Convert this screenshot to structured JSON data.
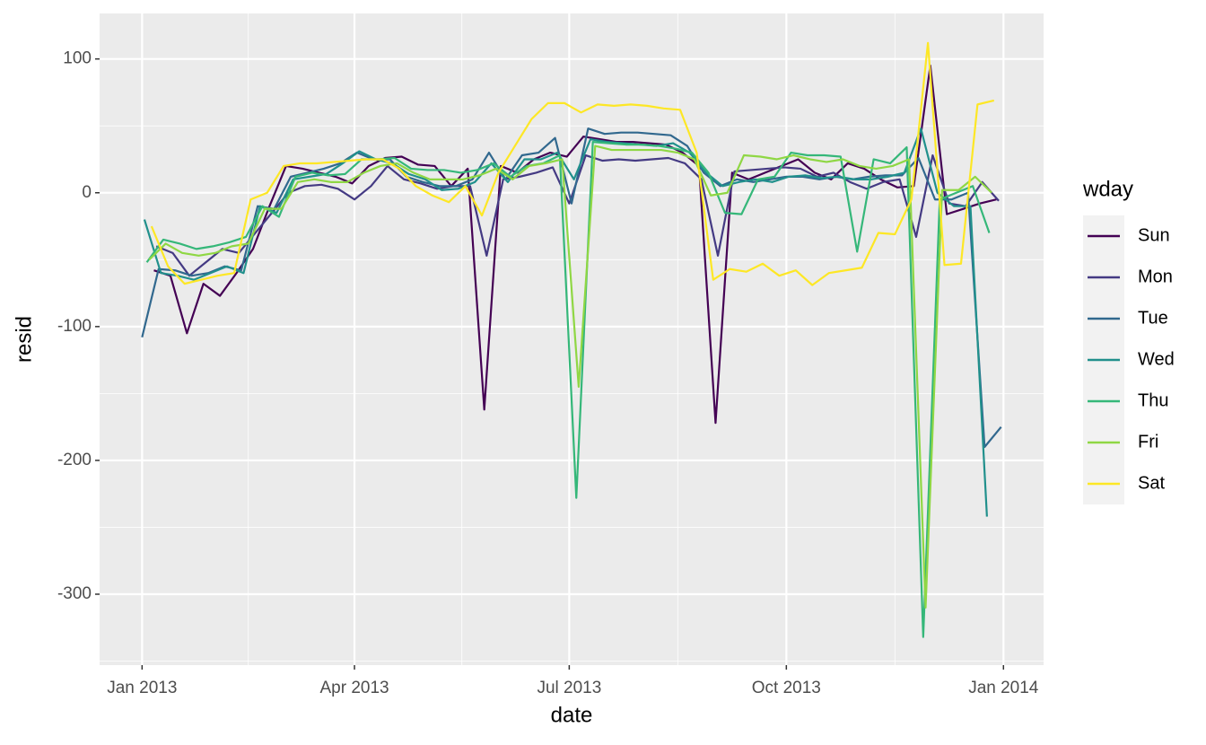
{
  "chart_data": {
    "type": "line",
    "x_label": "date",
    "y_label": "resid",
    "legend_title": "wday",
    "grid": true,
    "xlim": [
      -18,
      382
    ],
    "xticks": [
      {
        "value": 0,
        "label": "Jan 2013"
      },
      {
        "value": 90,
        "label": "Apr 2013"
      },
      {
        "value": 181,
        "label": "Jul 2013"
      },
      {
        "value": 273,
        "label": "Oct 2013"
      },
      {
        "value": 365,
        "label": "Jan 2014"
      }
    ],
    "ylim": [
      -353,
      134
    ],
    "yticks": [
      100,
      0,
      -100,
      -200,
      -300
    ],
    "series": [
      {
        "name": "Sun",
        "color": "#440154",
        "x": [
          5,
          12,
          19,
          26,
          33,
          40,
          47,
          54,
          61,
          68,
          75,
          82,
          89,
          96,
          103,
          110,
          117,
          124,
          131,
          138,
          145,
          152,
          159,
          166,
          173,
          180,
          187,
          194,
          201,
          208,
          215,
          222,
          229,
          236,
          243,
          250,
          257,
          264,
          271,
          278,
          285,
          292,
          299,
          306,
          313,
          320,
          327,
          334,
          341,
          348,
          355,
          362
        ],
        "values": [
          -58,
          -62,
          -105,
          -68,
          -77,
          -60,
          -42,
          -10,
          20,
          18,
          15,
          12,
          7,
          20,
          26,
          27,
          21,
          20,
          5,
          18,
          -162,
          20,
          15,
          25,
          30,
          27,
          42,
          40,
          38,
          38,
          37,
          36,
          30,
          20,
          -172,
          15,
          10,
          15,
          20,
          25,
          15,
          10,
          22,
          18,
          10,
          4,
          5,
          95,
          -16,
          -12,
          -8,
          -5
        ]
      },
      {
        "name": "Mon",
        "color": "#443A83",
        "x": [
          6,
          13,
          20,
          27,
          34,
          41,
          48,
          55,
          62,
          69,
          76,
          83,
          90,
          97,
          104,
          111,
          118,
          125,
          132,
          139,
          146,
          153,
          160,
          167,
          174,
          181,
          188,
          195,
          202,
          209,
          216,
          223,
          230,
          237,
          244,
          251,
          258,
          265,
          272,
          279,
          286,
          293,
          300,
          307,
          314,
          321,
          328,
          335,
          342,
          349,
          356,
          363
        ],
        "values": [
          -40,
          -45,
          -62,
          -52,
          -42,
          -45,
          -30,
          -15,
          0,
          5,
          6,
          3,
          -5,
          5,
          20,
          10,
          7,
          3,
          5,
          5,
          -47,
          10,
          12,
          15,
          19,
          -8,
          28,
          24,
          25,
          24,
          25,
          26,
          22,
          10,
          -47,
          16,
          17,
          18,
          19,
          18,
          12,
          15,
          8,
          3,
          8,
          10,
          -33,
          28,
          -8,
          -10,
          8,
          -6
        ]
      },
      {
        "name": "Tue",
        "color": "#31688E",
        "x": [
          0,
          7,
          14,
          21,
          28,
          35,
          42,
          49,
          56,
          63,
          70,
          77,
          84,
          91,
          98,
          105,
          112,
          119,
          126,
          133,
          140,
          147,
          154,
          161,
          168,
          175,
          182,
          189,
          196,
          203,
          210,
          217,
          224,
          231,
          238,
          245,
          252,
          259,
          266,
          273,
          280,
          287,
          294,
          301,
          308,
          315,
          322,
          329,
          336,
          343,
          350,
          357,
          364
        ],
        "values": [
          -108,
          -57,
          -58,
          -62,
          -60,
          -55,
          -58,
          -10,
          -12,
          12,
          15,
          18,
          22,
          30,
          25,
          25,
          12,
          8,
          5,
          5,
          10,
          30,
          10,
          28,
          30,
          41,
          -8,
          48,
          44,
          45,
          45,
          44,
          43,
          35,
          15,
          5,
          10,
          8,
          10,
          12,
          12,
          10,
          12,
          10,
          12,
          13,
          13,
          26,
          -5,
          -5,
          0,
          -190,
          -175
        ]
      },
      {
        "name": "Wed",
        "color": "#21908C",
        "x": [
          1,
          8,
          15,
          22,
          29,
          36,
          43,
          50,
          57,
          64,
          71,
          78,
          85,
          92,
          99,
          106,
          113,
          120,
          127,
          134,
          141,
          148,
          155,
          162,
          169,
          176,
          183,
          190,
          197,
          204,
          211,
          218,
          225,
          232,
          239,
          246,
          253,
          260,
          267,
          274,
          281,
          288,
          295,
          302,
          309,
          316,
          323,
          330,
          337,
          344,
          351,
          358
        ],
        "values": [
          -20,
          -60,
          -62,
          -65,
          -60,
          -55,
          -60,
          -10,
          -15,
          10,
          12,
          14,
          22,
          31,
          25,
          22,
          14,
          10,
          2,
          3,
          8,
          22,
          8,
          25,
          25,
          30,
          10,
          40,
          38,
          37,
          36,
          35,
          37,
          30,
          15,
          5,
          8,
          10,
          8,
          12,
          13,
          11,
          12,
          10,
          10,
          12,
          15,
          48,
          0,
          -10,
          -10,
          -242
        ]
      },
      {
        "name": "Thu",
        "color": "#35B779",
        "x": [
          2,
          9,
          16,
          23,
          30,
          37,
          44,
          51,
          58,
          65,
          72,
          79,
          86,
          93,
          100,
          107,
          114,
          121,
          128,
          135,
          142,
          149,
          156,
          163,
          170,
          177,
          184,
          191,
          198,
          205,
          212,
          219,
          226,
          233,
          240,
          247,
          254,
          261,
          268,
          275,
          282,
          289,
          296,
          303,
          310,
          317,
          324,
          331,
          338,
          345,
          352,
          359
        ],
        "values": [
          -52,
          -35,
          -38,
          -42,
          -40,
          -37,
          -33,
          -10,
          -18,
          12,
          15,
          13,
          14,
          25,
          25,
          26,
          18,
          17,
          17,
          15,
          17,
          22,
          12,
          20,
          22,
          28,
          -228,
          38,
          37,
          36,
          36,
          35,
          33,
          30,
          15,
          -15,
          -16,
          10,
          12,
          30,
          28,
          28,
          27,
          -44,
          25,
          22,
          34,
          -332,
          -5,
          0,
          5,
          -30
        ]
      },
      {
        "name": "Fri",
        "color": "#8FD744",
        "x": [
          3,
          10,
          17,
          24,
          31,
          38,
          45,
          52,
          59,
          66,
          73,
          80,
          87,
          94,
          101,
          108,
          115,
          122,
          129,
          136,
          143,
          150,
          157,
          164,
          171,
          178,
          185,
          192,
          199,
          206,
          213,
          220,
          227,
          234,
          241,
          248,
          255,
          262,
          269,
          276,
          283,
          290,
          297,
          304,
          311,
          318,
          325,
          332,
          339,
          346,
          353,
          360
        ],
        "values": [
          -50,
          -38,
          -45,
          -47,
          -45,
          -40,
          -38,
          -12,
          -12,
          8,
          10,
          8,
          8,
          15,
          20,
          22,
          15,
          10,
          10,
          10,
          13,
          18,
          10,
          20,
          22,
          25,
          -145,
          35,
          32,
          32,
          32,
          32,
          30,
          25,
          -2,
          0,
          28,
          27,
          25,
          28,
          25,
          23,
          25,
          20,
          18,
          20,
          25,
          -310,
          2,
          2,
          12,
          0
        ]
      },
      {
        "name": "Sat",
        "color": "#FDE725",
        "x": [
          4,
          11,
          18,
          25,
          32,
          39,
          46,
          53,
          60,
          67,
          74,
          81,
          88,
          95,
          102,
          109,
          116,
          123,
          130,
          137,
          144,
          151,
          158,
          165,
          172,
          179,
          186,
          193,
          200,
          207,
          214,
          221,
          228,
          235,
          242,
          249,
          256,
          263,
          270,
          277,
          284,
          291,
          298,
          305,
          312,
          319,
          326,
          333,
          340,
          347,
          354,
          361
        ],
        "values": [
          -25,
          -55,
          -68,
          -65,
          -62,
          -60,
          -5,
          0,
          20,
          22,
          22,
          23,
          24,
          25,
          25,
          18,
          5,
          -2,
          -7,
          5,
          -17,
          15,
          35,
          55,
          67,
          67,
          60,
          66,
          65,
          66,
          65,
          63,
          62,
          30,
          -65,
          -57,
          -59,
          -53,
          -62,
          -58,
          -69,
          -60,
          -58,
          -56,
          -30,
          -31,
          -5,
          112,
          -54,
          -53,
          66,
          69
        ]
      }
    ]
  }
}
